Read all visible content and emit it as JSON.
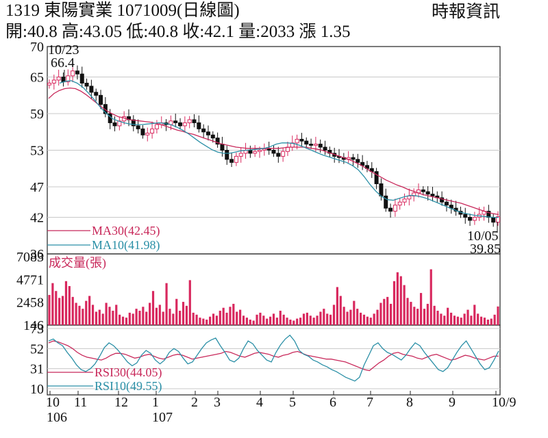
{
  "header": {
    "title": "1319  東陽實業 1071009(日線圖)",
    "source": "時報資訊",
    "ohlc": "開:40.8 高:43.05 低:40.8 收:42.1 量:2033 漲 1.35"
  },
  "colors": {
    "ma30": "#c8285a",
    "ma10": "#2a8fa6",
    "rsi30": "#c8285a",
    "rsi10": "#2a8fa6",
    "volume": "#d8285e",
    "up": "#d8285e",
    "down": "#111111",
    "grid": "#c8c8c8"
  },
  "chart_data": [
    {
      "type": "candlestick",
      "price_ticks": [
        "70",
        "65",
        "59",
        "53",
        "47",
        "42",
        "36"
      ],
      "ylim": [
        36,
        70
      ],
      "annotations": {
        "high_date": "10/23",
        "high_value": "66.4",
        "low_date": "10/05",
        "low_value": "39.85"
      },
      "legend": [
        {
          "label": "MA30(42.45)",
          "color": "#c8285a"
        },
        {
          "label": "MA10(41.98)",
          "color": "#2a8fa6"
        }
      ],
      "x_ticks": [
        "10",
        "11",
        "12",
        "1",
        "2",
        "3",
        "4",
        "5",
        "6",
        "7",
        "8",
        "9",
        "10/9"
      ],
      "x_sub_ticks": [
        "106",
        "107"
      ],
      "close_series": [
        64.0,
        64.5,
        65.0,
        64.2,
        65.2,
        66.0,
        65.5,
        64.0,
        63.5,
        62.5,
        62.0,
        60.5,
        59.0,
        57.5,
        57.0,
        57.8,
        58.5,
        58.0,
        57.0,
        56.5,
        55.5,
        55.8,
        56.5,
        57.2,
        57.5,
        57.2,
        57.8,
        57.5,
        57.0,
        57.5,
        58.0,
        57.5,
        56.5,
        56.0,
        55.5,
        55.0,
        54.0,
        53.0,
        51.5,
        51.0,
        52.0,
        52.5,
        53.0,
        52.5,
        52.8,
        53.0,
        53.2,
        53.0,
        52.5,
        52.0,
        52.8,
        53.5,
        54.2,
        54.8,
        54.5,
        54.0,
        53.8,
        54.0,
        53.5,
        53.0,
        52.5,
        52.0,
        51.8,
        51.5,
        51.8,
        51.5,
        51.0,
        50.5,
        50.0,
        49.5,
        47.5,
        45.5,
        43.5,
        43.0,
        44.0,
        44.5,
        45.0,
        45.5,
        46.0,
        46.5,
        46.2,
        45.8,
        45.5,
        45.2,
        44.5,
        44.0,
        43.5,
        43.0,
        42.5,
        42.0,
        41.5,
        42.0,
        42.5,
        43.0,
        42.0,
        41.2,
        42.1
      ],
      "ma30_series": [
        61.5,
        62.3,
        62.8,
        63.1,
        63.2,
        63.1,
        62.7,
        62.1,
        61.4,
        60.7,
        60.0,
        59.4,
        58.9,
        58.5,
        58.3,
        58.0,
        57.9,
        57.8,
        57.7,
        57.6,
        57.4,
        57.2,
        56.9,
        56.6,
        56.3,
        56.1,
        55.8,
        55.6,
        55.3,
        55.0,
        54.7,
        54.4,
        54.1,
        53.9,
        53.7,
        53.5,
        53.4,
        53.3,
        53.3,
        53.3,
        53.3,
        53.3,
        53.3,
        53.3,
        53.4,
        53.5,
        53.5,
        53.5,
        53.5,
        53.3,
        53.2,
        53.0,
        52.7,
        52.4,
        52.1,
        51.8,
        51.5,
        51.1,
        50.7,
        50.2,
        49.6,
        49.1,
        48.6,
        48.1,
        47.7,
        47.3,
        47.0,
        46.6,
        46.3,
        46.0,
        45.7,
        45.5,
        45.3,
        45.1,
        44.9,
        44.7,
        44.5,
        44.3,
        44.0,
        43.7,
        43.4,
        43.1,
        42.8,
        42.6,
        42.45
      ],
      "ma10_series": [
        64.0,
        64.3,
        64.4,
        64.0,
        63.3,
        62.3,
        61.2,
        60.0,
        59.0,
        58.2,
        57.8,
        57.5,
        57.3,
        57.2,
        57.2,
        57.3,
        57.4,
        57.5,
        57.4,
        57.2,
        56.8,
        56.3,
        55.7,
        55.0,
        54.3,
        53.7,
        53.1,
        52.7,
        52.5,
        52.5,
        52.7,
        52.9,
        53.0,
        53.1,
        53.2,
        53.3,
        53.6,
        54.0,
        54.2,
        54.2,
        54.1,
        53.8,
        53.4,
        53.0,
        52.6,
        52.2,
        51.9,
        51.6,
        51.3,
        51.0,
        50.5,
        49.8,
        48.7,
        47.4,
        46.3,
        45.4,
        44.9,
        44.8,
        45.1,
        45.4,
        45.6,
        45.5,
        45.3,
        45.0,
        44.6,
        44.2,
        43.8,
        43.4,
        43.0,
        42.7,
        42.5,
        42.3,
        42.2,
        42.1,
        42.0,
        41.98
      ],
      "candles": [],
      "grid": true
    },
    {
      "type": "bar",
      "title": "成交量(張)",
      "y_ticks": [
        "7083",
        "4771",
        "2458",
        "146"
      ],
      "ylim": [
        146,
        7083
      ],
      "values": [
        3200,
        4400,
        3600,
        2900,
        3100,
        4600,
        4100,
        3000,
        2400,
        2100,
        1800,
        2600,
        3100,
        2200,
        1500,
        1700,
        1300,
        2400,
        2000,
        1600,
        2200,
        1200,
        1000,
        900,
        1400,
        1300,
        1800,
        1600,
        2000,
        1500,
        2400,
        3600,
        1900,
        2200,
        1500,
        4400,
        1800,
        1300,
        2800,
        1600,
        2500,
        2100,
        4700,
        1400,
        1200,
        900,
        800,
        700,
        1000,
        1300,
        1100,
        1600,
        1900,
        1400,
        2000,
        2300,
        1500,
        1700,
        1100,
        900,
        700,
        600,
        1200,
        1400,
        1100,
        800,
        1000,
        1300,
        900,
        1600,
        1200,
        900,
        700,
        600,
        800,
        900,
        1300,
        1400,
        1100,
        900,
        1100,
        1500,
        1800,
        1300,
        1200,
        2200,
        4000,
        3100,
        2000,
        1500,
        1700,
        2600,
        1800,
        1400,
        1200,
        1000,
        900,
        1300,
        1700,
        2400,
        2800,
        3000,
        2300,
        4600,
        5500,
        5100,
        4200,
        2900,
        2500,
        2000,
        1800,
        3400,
        1800,
        2300,
        5800,
        2100,
        1600,
        1300,
        1100,
        1900,
        1400,
        1100,
        1000,
        900,
        1300,
        1700,
        1100,
        2200,
        1300,
        1000,
        900,
        700,
        800,
        1200,
        2033
      ]
    },
    {
      "type": "line",
      "y_ticks": [
        "73",
        "52",
        "31",
        "10"
      ],
      "ylim": [
        10,
        73
      ],
      "legend": [
        {
          "label": "RSI30(44.05)",
          "color": "#c8285a"
        },
        {
          "label": "RSI10(49.55)",
          "color": "#2a8fa6"
        }
      ],
      "series": [
        {
          "name": "RSI30(44.05)",
          "values": [
            58,
            60,
            59,
            57,
            55,
            52,
            48,
            45,
            43,
            42,
            41,
            40,
            42,
            45,
            47,
            47,
            46,
            44,
            42,
            43,
            45,
            46,
            44,
            42,
            41,
            43,
            45,
            46,
            45,
            43,
            41,
            42,
            43,
            44,
            45,
            46,
            47,
            49,
            48,
            46,
            44,
            43,
            45,
            47,
            48,
            47,
            46,
            44,
            43,
            45,
            46,
            48,
            49,
            47,
            45,
            44,
            43,
            42,
            41,
            41,
            40,
            39,
            38,
            36,
            34,
            32,
            30,
            29,
            33,
            37,
            40,
            44,
            47,
            48,
            46,
            45,
            44,
            42,
            41,
            43,
            45,
            46,
            44,
            42,
            40,
            41,
            43,
            45,
            44,
            42,
            41,
            40,
            42,
            44,
            44.05
          ]
        },
        {
          "name": "RSI10(49.55)",
          "values": [
            60,
            62,
            58,
            55,
            48,
            42,
            35,
            30,
            28,
            31,
            36,
            44,
            53,
            58,
            55,
            50,
            44,
            38,
            34,
            37,
            45,
            50,
            47,
            40,
            36,
            40,
            48,
            52,
            49,
            42,
            36,
            38,
            45,
            52,
            58,
            61,
            63,
            55,
            48,
            40,
            38,
            42,
            52,
            60,
            57,
            50,
            45,
            40,
            38,
            48,
            56,
            62,
            66,
            60,
            50,
            46,
            44,
            40,
            38,
            35,
            33,
            30,
            28,
            25,
            22,
            20,
            18,
            22,
            35,
            45,
            55,
            58,
            52,
            48,
            46,
            43,
            40,
            45,
            52,
            58,
            55,
            48,
            42,
            36,
            30,
            28,
            32,
            40,
            48,
            55,
            60,
            52,
            44,
            36,
            30,
            32,
            40,
            49.55
          ]
        }
      ],
      "grid": true
    }
  ]
}
